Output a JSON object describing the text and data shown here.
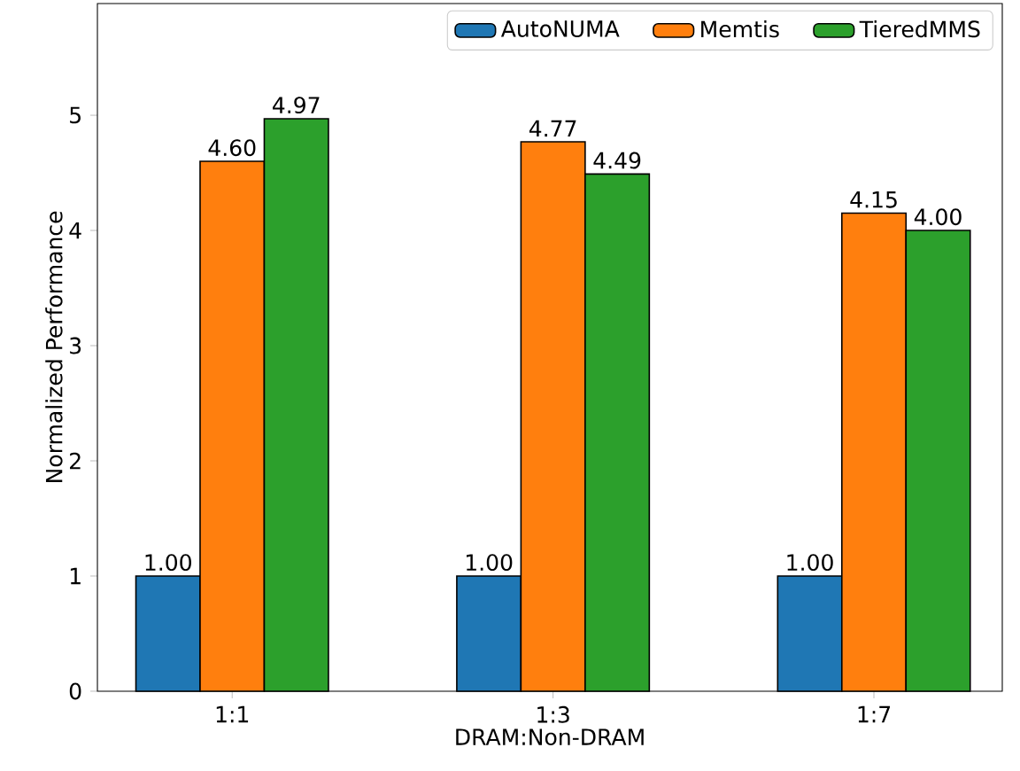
{
  "chart_data": {
    "type": "bar",
    "xlabel": "DRAM:Non-DRAM",
    "ylabel": "Normalized Performance",
    "categories": [
      "1:1",
      "1:3",
      "1:7"
    ],
    "series": [
      {
        "name": "AutoNUMA",
        "color": "#1f77b4",
        "values": [
          1.0,
          1.0,
          1.0
        ],
        "value_labels": [
          "1.00",
          "1.00",
          "1.00"
        ]
      },
      {
        "name": "Memtis",
        "color": "#ff7f0e",
        "values": [
          4.6,
          4.77,
          4.15
        ],
        "value_labels": [
          "4.60",
          "4.77",
          "4.15"
        ]
      },
      {
        "name": "TieredMMS",
        "color": "#2ca02c",
        "values": [
          4.97,
          4.49,
          4.0
        ],
        "value_labels": [
          "4.97",
          "4.49",
          "4.00"
        ]
      }
    ],
    "ylim": [
      0,
      5.97
    ],
    "yticks": [
      0,
      1,
      2,
      3,
      4,
      5
    ],
    "legend": "top right",
    "grid": false
  }
}
